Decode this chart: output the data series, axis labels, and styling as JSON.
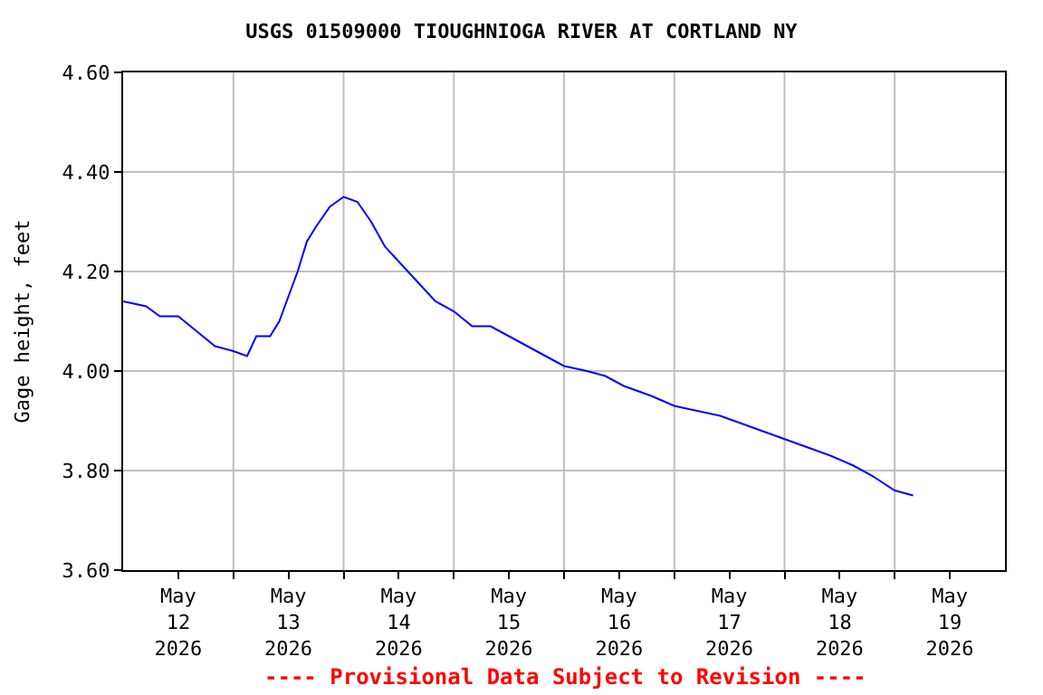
{
  "chart_data": {
    "type": "line",
    "title": "USGS 01509000 TIOUGHNIOGA RIVER AT CORTLAND NY",
    "ylabel": "Gage height, feet",
    "annotations": [
      "---- Provisional Data Subject to Revision ----"
    ],
    "x": [
      "2026-05-12T00:00",
      "2026-05-12T05:00",
      "2026-05-12T08:00",
      "2026-05-12T12:00",
      "2026-05-12T16:00",
      "2026-05-12T20:00",
      "2026-05-13T00:00",
      "2026-05-13T03:00",
      "2026-05-13T05:00",
      "2026-05-13T08:00",
      "2026-05-13T10:00",
      "2026-05-13T12:00",
      "2026-05-13T14:00",
      "2026-05-13T16:00",
      "2026-05-13T18:00",
      "2026-05-13T21:00",
      "2026-05-14T00:00",
      "2026-05-14T03:00",
      "2026-05-14T06:00",
      "2026-05-14T09:00",
      "2026-05-14T13:00",
      "2026-05-14T17:00",
      "2026-05-14T20:00",
      "2026-05-15T00:00",
      "2026-05-15T04:00",
      "2026-05-15T08:00",
      "2026-05-15T12:00",
      "2026-05-15T16:00",
      "2026-05-15T20:00",
      "2026-05-16T00:00",
      "2026-05-16T05:00",
      "2026-05-16T09:00",
      "2026-05-16T13:00",
      "2026-05-16T19:00",
      "2026-05-17T00:00",
      "2026-05-17T05:00",
      "2026-05-17T10:00",
      "2026-05-17T16:00",
      "2026-05-17T22:00",
      "2026-05-18T04:00",
      "2026-05-18T10:00",
      "2026-05-18T15:00",
      "2026-05-18T19:00",
      "2026-05-19T00:00",
      "2026-05-19T04:00"
    ],
    "series": [
      {
        "color": "#0000ff",
        "values": [
          4.14,
          4.13,
          4.11,
          4.11,
          4.08,
          4.05,
          4.04,
          4.03,
          4.07,
          4.07,
          4.1,
          4.15,
          4.2,
          4.26,
          4.29,
          4.33,
          4.35,
          4.34,
          4.3,
          4.25,
          4.21,
          4.17,
          4.14,
          4.12,
          4.09,
          4.09,
          4.07,
          4.05,
          4.03,
          4.01,
          4.0,
          3.99,
          3.97,
          3.95,
          3.93,
          3.92,
          3.91,
          3.89,
          3.87,
          3.85,
          3.83,
          3.81,
          3.79,
          3.76,
          3.75
        ]
      }
    ],
    "xlim": [
      "2026-05-12T00:00",
      "2026-05-20T00:00"
    ],
    "xticks": [
      {
        "value": "2026-05-12T12:00",
        "label": "May\n12\n2026"
      },
      {
        "value": "2026-05-13T00:00",
        "label": null
      },
      {
        "value": "2026-05-13T12:00",
        "label": "May\n13\n2026"
      },
      {
        "value": "2026-05-14T00:00",
        "label": null
      },
      {
        "value": "2026-05-14T12:00",
        "label": "May\n14\n2026"
      },
      {
        "value": "2026-05-15T00:00",
        "label": null
      },
      {
        "value": "2026-05-15T12:00",
        "label": "May\n15\n2026"
      },
      {
        "value": "2026-05-16T00:00",
        "label": null
      },
      {
        "value": "2026-05-16T12:00",
        "label": "May\n16\n2026"
      },
      {
        "value": "2026-05-17T00:00",
        "label": null
      },
      {
        "value": "2026-05-17T12:00",
        "label": "May\n17\n2026"
      },
      {
        "value": "2026-05-18T00:00",
        "label": null
      },
      {
        "value": "2026-05-18T12:00",
        "label": "May\n18\n2026"
      },
      {
        "value": "2026-05-19T00:00",
        "label": null
      },
      {
        "value": "2026-05-19T12:00",
        "label": "May\n19\n2026"
      }
    ],
    "ylim": [
      3.6,
      4.6
    ],
    "yticks": [
      {
        "value": 3.6,
        "label": "3.60"
      },
      {
        "value": 3.8,
        "label": "3.80"
      },
      {
        "value": 4.0,
        "label": "4.00"
      },
      {
        "value": 4.2,
        "label": "4.20"
      },
      {
        "value": 4.4,
        "label": "4.40"
      },
      {
        "value": 4.6,
        "label": "4.60"
      }
    ],
    "grid": true
  }
}
